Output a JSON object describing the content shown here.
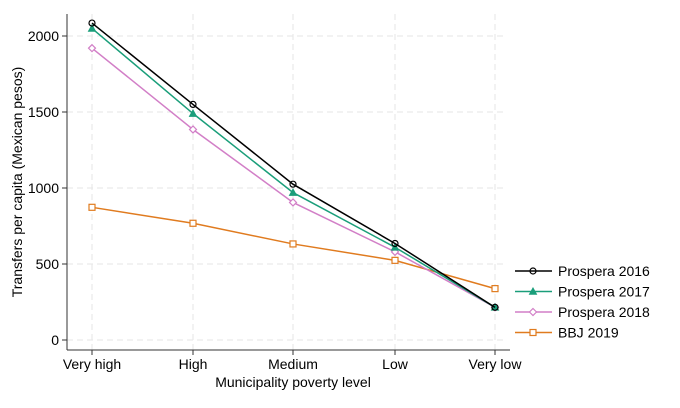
{
  "chart_data": {
    "type": "line",
    "title": "",
    "xlabel": "Municipality poverty level",
    "ylabel": "Transfers per capita (Mexican pesos)",
    "categories": [
      "Very high",
      "High",
      "Medium",
      "Low",
      "Very low"
    ],
    "ylim": [
      0,
      2150
    ],
    "yticks": [
      0,
      500,
      1000,
      1500,
      2000
    ],
    "grid": true,
    "legend_position": "right",
    "series": [
      {
        "name": "Prospera 2016",
        "values": [
          2085,
          1550,
          1025,
          635,
          215
        ],
        "color": "#000000",
        "marker": "circle"
      },
      {
        "name": "Prospera 2017",
        "values": [
          2050,
          1490,
          970,
          610,
          215
        ],
        "color": "#1a9e7a",
        "marker": "triangle"
      },
      {
        "name": "Prospera 2018",
        "values": [
          1920,
          1385,
          905,
          580,
          215
        ],
        "color": "#d27fc7",
        "marker": "diamond"
      },
      {
        "name": "BBJ 2019",
        "values": [
          873,
          768,
          632,
          524,
          338
        ],
        "color": "#e07b1f",
        "marker": "square"
      }
    ]
  }
}
